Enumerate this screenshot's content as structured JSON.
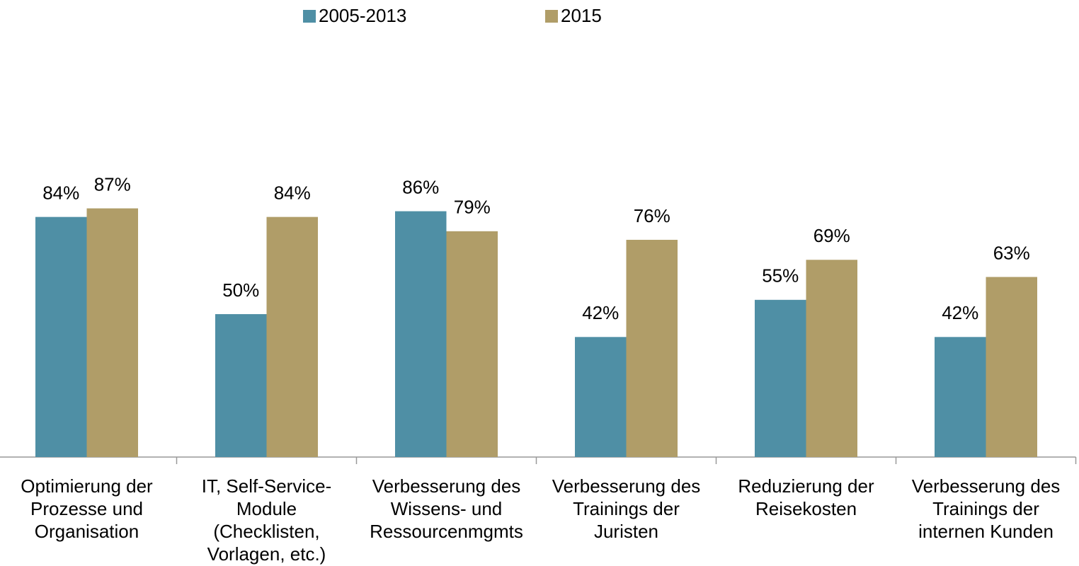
{
  "chart_data": {
    "type": "bar",
    "categories": [
      "Optimierung der\nProzesse und\nOrganisation",
      "IT, Self-Service-\nModule\n(Checklisten,\nVorlagen, etc.)",
      "Verbesserung des\nWissens- und\nRessourcenmgmts",
      "Verbesserung des\nTrainings der\nJuristen",
      "Reduzierung der\nReisekosten",
      "Verbesserung des\nTrainings der\ninternen Kunden"
    ],
    "series": [
      {
        "name": "2005-2013",
        "color": "#4f8fa5",
        "values": [
          84,
          50,
          86,
          42,
          55,
          42
        ],
        "value_labels": [
          "84%",
          "50%",
          "86%",
          "42%",
          "55%",
          "42%"
        ]
      },
      {
        "name": "2015",
        "color": "#b09d68",
        "values": [
          87,
          84,
          79,
          76,
          69,
          63
        ],
        "value_labels": [
          "87%",
          "84%",
          "79%",
          "76%",
          "69%",
          "63%"
        ]
      }
    ],
    "ylim": [
      0,
      100
    ]
  }
}
